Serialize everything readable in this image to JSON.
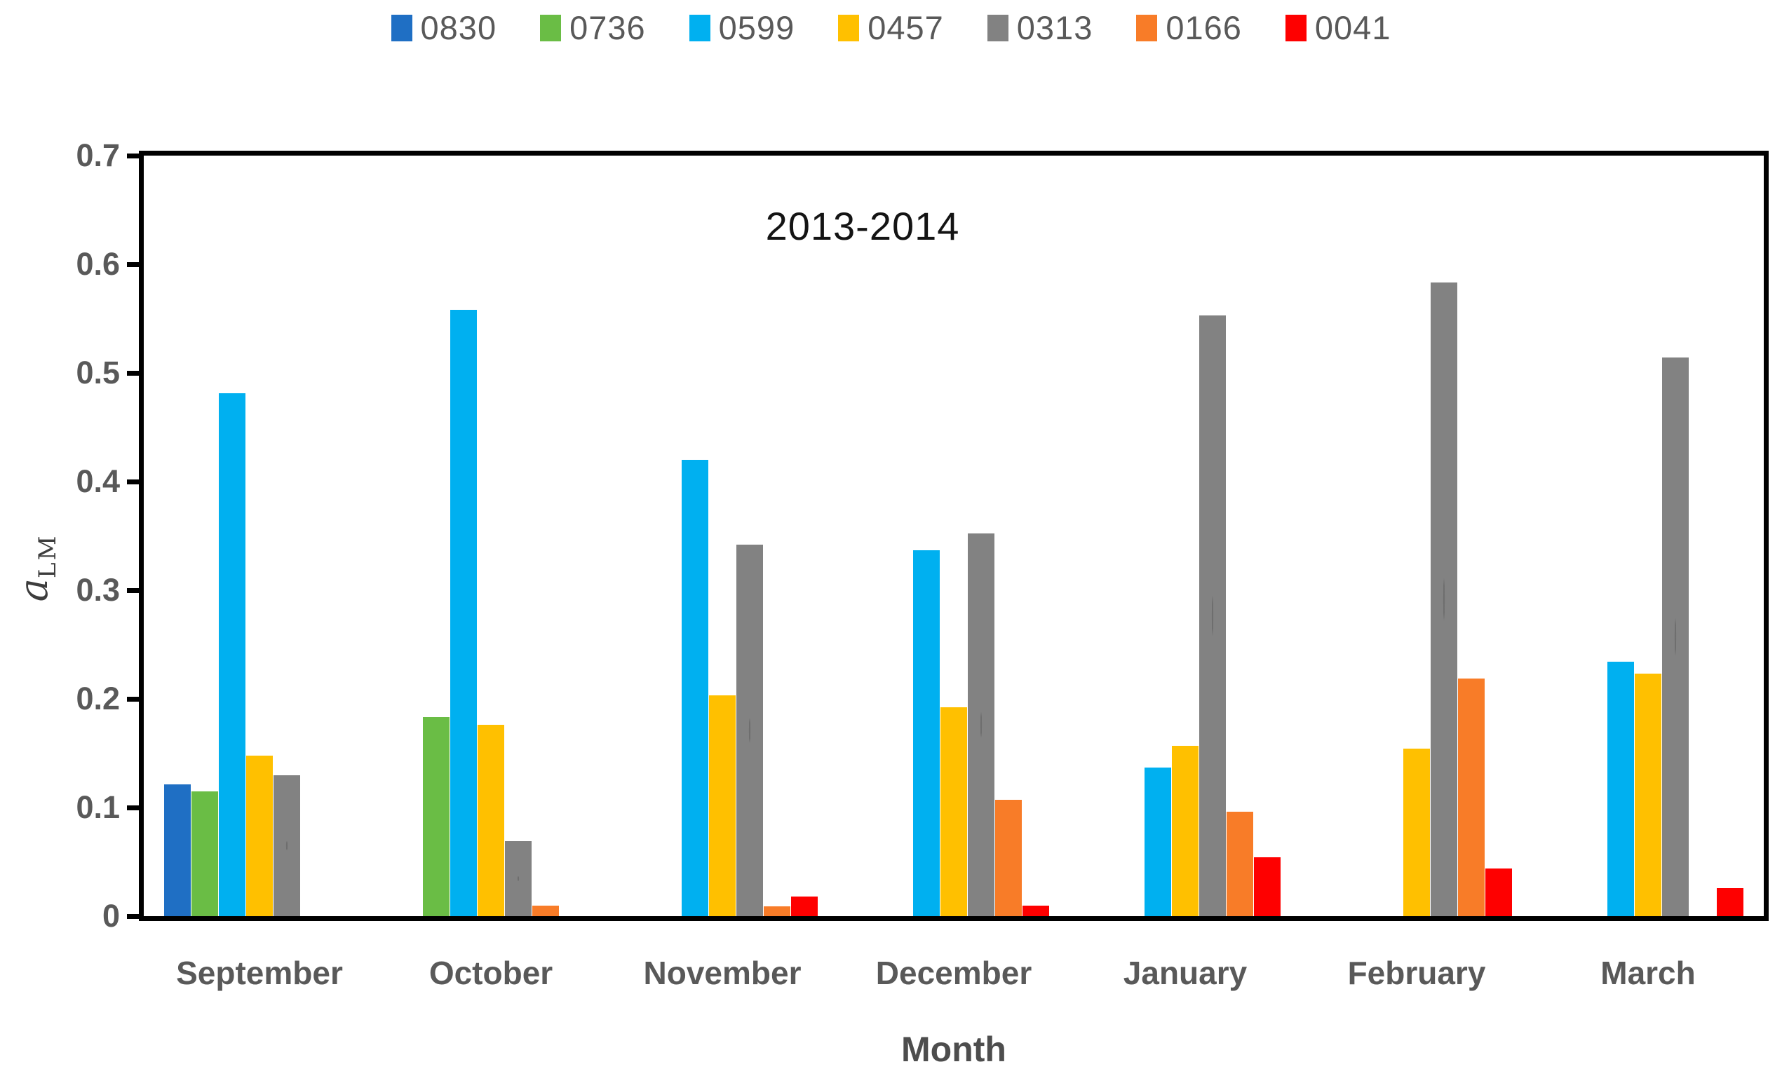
{
  "chart_data": {
    "type": "bar",
    "title": "2013-2014",
    "xlabel": "Month",
    "ylabel": {
      "symbol": "a",
      "subscript": "LM"
    },
    "ylim": [
      0,
      0.7
    ],
    "ytick_labels": [
      "0",
      "0.1",
      "0.2",
      "0.3",
      "0.4",
      "0.5",
      "0.6",
      "0.7"
    ],
    "ytick_values": [
      0,
      0.1,
      0.2,
      0.3,
      0.4,
      0.5,
      0.6,
      0.7
    ],
    "grid": false,
    "legend_position": "top",
    "categories": [
      "September",
      "October",
      "November",
      "December",
      "January",
      "February",
      "March"
    ],
    "series": [
      {
        "name": "0830",
        "color": "#1F6FC4",
        "pattern": false,
        "values": [
          0.121,
          0,
          0,
          0,
          0,
          0,
          0
        ]
      },
      {
        "name": "0736",
        "color": "#6ABD45",
        "pattern": false,
        "values": [
          0.115,
          0.183,
          0,
          0,
          0,
          0,
          0
        ]
      },
      {
        "name": "0599",
        "color": "#00B0F0",
        "pattern": false,
        "values": [
          0.481,
          0.558,
          0.42,
          0.337,
          0.137,
          0,
          0.234
        ]
      },
      {
        "name": "0457",
        "color": "#FFC000",
        "pattern": false,
        "values": [
          0.148,
          0.176,
          0.203,
          0.192,
          0.157,
          0.154,
          0.223
        ]
      },
      {
        "name": "0313",
        "color": "#828282",
        "pattern": true,
        "values": [
          0.13,
          0.069,
          0.342,
          0.352,
          0.553,
          0.583,
          0.514
        ]
      },
      {
        "name": "0166",
        "color": "#F87C28",
        "pattern": false,
        "values": [
          0,
          0.01,
          0.009,
          0.107,
          0.096,
          0.219,
          0
        ]
      },
      {
        "name": "0041",
        "color": "#FE0000",
        "pattern": false,
        "values": [
          0,
          0,
          0.018,
          0.01,
          0.054,
          0.044,
          0.026
        ]
      }
    ]
  }
}
